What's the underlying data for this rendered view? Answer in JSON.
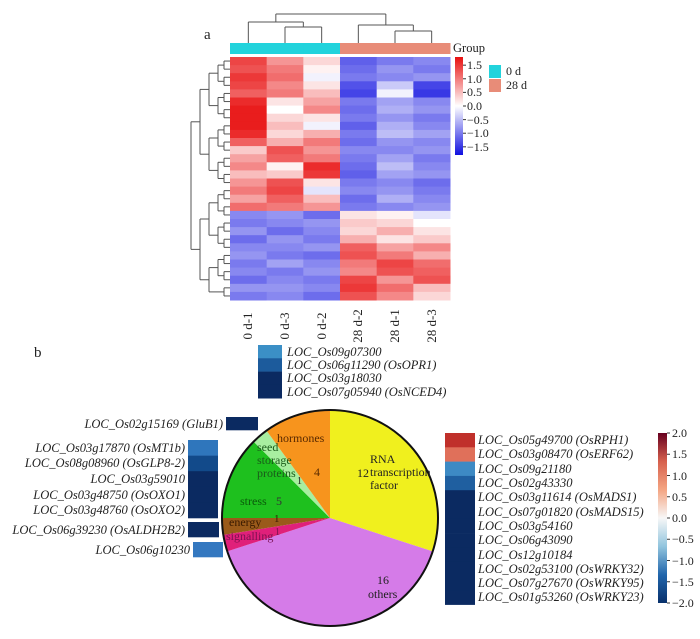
{
  "chart_data": [
    {
      "type": "heatmap",
      "panel_label": "a",
      "columns": [
        "0 d-1",
        "0 d-3",
        "0 d-2",
        "28 d-2",
        "28 d-1",
        "28 d-3"
      ],
      "column_groups": [
        "0 d",
        "0 d",
        "0 d",
        "28 d",
        "28 d",
        "28 d"
      ],
      "group_legend": {
        "title": "Group",
        "entries": [
          {
            "label": "0 d",
            "color": "#22d3dc"
          },
          {
            "label": "28 d",
            "color": "#e88c78"
          }
        ]
      },
      "colorbar": {
        "ticks": [
          "1.5",
          "1.0",
          "0.5",
          "0.0",
          "−0.5",
          "−1.0",
          "−1.5"
        ],
        "range": [
          -1.8,
          1.8
        ],
        "colors": [
          "#1010e0",
          "#ffffff",
          "#e81010"
        ]
      },
      "matrix": [
        [
          1.4,
          0.8,
          0.3,
          -1.2,
          -1.0,
          -0.9
        ],
        [
          1.3,
          1.0,
          0.1,
          -1.1,
          -0.8,
          -1.0
        ],
        [
          1.5,
          1.1,
          -0.1,
          -1.0,
          -0.9,
          -0.8
        ],
        [
          1.4,
          0.9,
          0.2,
          -1.3,
          -0.4,
          -1.4
        ],
        [
          1.2,
          1.0,
          0.5,
          -1.4,
          -0.1,
          -1.5
        ],
        [
          1.6,
          0.2,
          0.7,
          -1.0,
          -0.7,
          -0.9
        ],
        [
          1.7,
          0.0,
          0.9,
          -1.1,
          -0.6,
          -0.8
        ],
        [
          1.7,
          0.3,
          0.2,
          -1.0,
          -0.8,
          -1.0
        ],
        [
          1.7,
          0.5,
          -0.1,
          -1.2,
          -0.6,
          -0.9
        ],
        [
          1.6,
          0.3,
          0.6,
          -1.0,
          -0.5,
          -0.7
        ],
        [
          1.2,
          0.6,
          1.0,
          -1.1,
          -0.8,
          -0.9
        ],
        [
          0.4,
          1.3,
          0.8,
          -0.9,
          -0.9,
          -0.8
        ],
        [
          0.7,
          1.2,
          1.0,
          -1.0,
          -0.7,
          -1.0
        ],
        [
          0.9,
          0.1,
          1.6,
          -1.1,
          -0.5,
          -0.9
        ],
        [
          0.5,
          0.4,
          1.5,
          -1.2,
          -0.7,
          -0.8
        ],
        [
          0.8,
          1.3,
          0.2,
          -1.0,
          -0.9,
          -1.1
        ],
        [
          1.0,
          1.4,
          -0.2,
          -0.9,
          -0.8,
          -1.0
        ],
        [
          0.7,
          1.2,
          0.5,
          -1.1,
          -0.6,
          -0.9
        ],
        [
          1.1,
          1.0,
          0.8,
          -1.0,
          -0.9,
          -0.8
        ],
        [
          -0.9,
          -0.8,
          -1.1,
          0.2,
          0.1,
          -0.2
        ],
        [
          -1.0,
          -0.9,
          -0.8,
          0.4,
          0.3,
          0.0
        ],
        [
          -0.8,
          -1.1,
          -0.9,
          0.3,
          0.6,
          0.2
        ],
        [
          -1.1,
          -0.8,
          -1.0,
          0.6,
          0.2,
          0.4
        ],
        [
          -0.9,
          -0.9,
          -0.8,
          1.2,
          0.7,
          0.9
        ],
        [
          -0.8,
          -1.0,
          -1.1,
          1.3,
          1.0,
          0.6
        ],
        [
          -1.0,
          -0.7,
          -0.9,
          1.0,
          1.4,
          1.1
        ],
        [
          -0.9,
          -1.0,
          -0.8,
          0.9,
          1.3,
          1.2
        ],
        [
          -1.1,
          -0.9,
          -1.0,
          1.4,
          0.8,
          1.3
        ],
        [
          -0.8,
          -0.8,
          -0.9,
          1.5,
          1.1,
          0.5
        ],
        [
          -1.0,
          -0.9,
          -1.1,
          1.3,
          0.9,
          0.3
        ]
      ]
    },
    {
      "type": "pie",
      "panel_label": "b",
      "slices": [
        {
          "label": "RNA transcription factor",
          "value": 12,
          "color": "#f0f01e"
        },
        {
          "label": "others",
          "value": 16,
          "color": "#d57be8"
        },
        {
          "label": "signalling",
          "value": 1,
          "color": "#e0207a"
        },
        {
          "label": "energy",
          "value": 1,
          "color": "#9a5a1a"
        },
        {
          "label": "stress",
          "value": 5,
          "color": "#1ec01e"
        },
        {
          "label": "seed storage proteins",
          "value": 1,
          "color": "#a8eea0"
        },
        {
          "label": "hormones",
          "value": 4,
          "color": "#f7941d"
        }
      ],
      "gene_heatmaps": {
        "hormones": [
          {
            "gene": "LOC_Os09g07300",
            "value": -1.0,
            "color": "#3b8fc6"
          },
          {
            "gene": "LOC_Os06g11290 (OsOPR1)",
            "value": -1.6,
            "color": "#1c5b9c"
          },
          {
            "gene": "LOC_Os03g18030",
            "value": -2.0,
            "color": "#0b2a61"
          },
          {
            "gene": "LOC_Os07g05940 (OsNCED4)",
            "value": -2.0,
            "color": "#0b2a61"
          }
        ],
        "seed_storage_proteins": [
          {
            "gene": "LOC_Os02g15169 (GluB1)",
            "value": -2.0,
            "color": "#0b2a61"
          }
        ],
        "stress": [
          {
            "gene": "LOC_Os03g17870 (OsMT1b)",
            "value": -1.2,
            "color": "#2f76bc"
          },
          {
            "gene": "LOC_Os08g08960 (OsGLP8-2)",
            "value": -1.8,
            "color": "#124a8a"
          },
          {
            "gene": "LOC_Os03g59010",
            "value": -2.0,
            "color": "#0b2a61"
          },
          {
            "gene": "LOC_Os03g48750 (OsOXO1)",
            "value": -2.0,
            "color": "#0b2a61"
          },
          {
            "gene": "LOC_Os03g48760 (OsOXO2)",
            "value": -2.0,
            "color": "#0b2a61"
          }
        ],
        "energy": [
          {
            "gene": "LOC_Os06g39230 (OsALDH2B2)",
            "value": -2.0,
            "color": "#0b2a61"
          }
        ],
        "signalling": [
          {
            "gene": "LOC_Os06g10230",
            "value": -1.1,
            "color": "#3478c0"
          }
        ],
        "rna_transcription_factor": [
          {
            "gene": "LOC_Os05g49700 (OsRPH1)",
            "value": 1.6,
            "color": "#c0302b"
          },
          {
            "gene": "LOC_Os03g08470 (OsERF62)",
            "value": 1.1,
            "color": "#e0705a"
          },
          {
            "gene": "LOC_Os09g21180",
            "value": -1.0,
            "color": "#3d8ac4"
          },
          {
            "gene": "LOC_Os02g43330",
            "value": -1.6,
            "color": "#1f5fa0"
          },
          {
            "gene": "LOC_Os03g11614 (OsMADS1)",
            "value": -2.0,
            "color": "#0b2a61"
          },
          {
            "gene": "LOC_Os07g01820 (OsMADS15)",
            "value": -2.0,
            "color": "#0b2a61"
          },
          {
            "gene": "LOC_Os03g54160",
            "value": -2.0,
            "color": "#0b2a61"
          },
          {
            "gene": "LOC_Os06g43090",
            "value": -2.0,
            "color": "#0b2a61"
          },
          {
            "gene": "LOC_Os12g10184",
            "value": -2.0,
            "color": "#0b2a61"
          },
          {
            "gene": "LOC_Os02g53100 (OsWRKY32)",
            "value": -2.0,
            "color": "#0b2a61"
          },
          {
            "gene": "LOC_Os07g27670 (OsWRKY95)",
            "value": -2.0,
            "color": "#0b2a61"
          },
          {
            "gene": "LOC_Os01g53260 (OsWRKY23)",
            "value": -2.0,
            "color": "#0b2a61"
          }
        ]
      },
      "colorbar": {
        "ticks": [
          "2.0",
          "1.5",
          "1.0",
          "0.5",
          "0.0",
          "−0.5",
          "−1.0",
          "−1.5",
          "−2.0"
        ],
        "range": [
          -2,
          2
        ],
        "colors": [
          "#08306b",
          "#2166ac",
          "#92c5de",
          "#f7f7f7",
          "#f4a582",
          "#d6604d",
          "#67001f"
        ]
      }
    }
  ]
}
